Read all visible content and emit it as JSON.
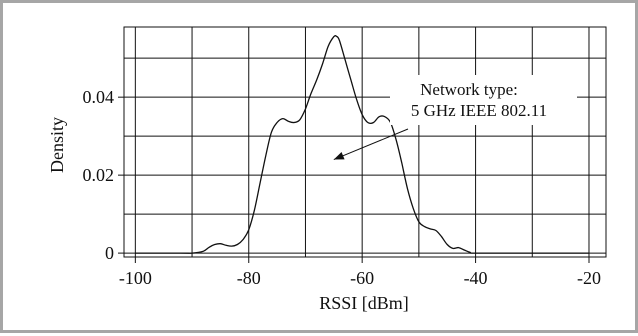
{
  "chart_data": {
    "type": "line",
    "xlabel": "RSSI [dBm]",
    "ylabel": "Density",
    "xlim": [
      -102,
      -17
    ],
    "ylim": [
      -0.001,
      0.058
    ],
    "x_ticks": [
      -100,
      -80,
      -60,
      -40,
      -20
    ],
    "x_tick_labels": [
      "-100",
      "-80",
      "-60",
      "-40",
      "-20"
    ],
    "x_grid": [
      -100,
      -90,
      -80,
      -70,
      -60,
      -50,
      -40,
      -30,
      -20
    ],
    "y_ticks": [
      0,
      0.02,
      0.04
    ],
    "y_tick_labels": [
      "0",
      "0.02",
      "0.04"
    ],
    "y_grid": [
      0,
      0.01,
      0.02,
      0.03,
      0.04,
      0.05
    ],
    "grid": true,
    "annotation": {
      "lines": [
        "Network type:",
        "5 GHz IEEE 802.11"
      ],
      "arrow_to": [
        -65,
        0.024
      ]
    },
    "series": [
      {
        "x": [
          -100,
          -92,
          -90,
          -88,
          -87,
          -86,
          -85,
          -84,
          -83,
          -82,
          -81,
          -80,
          -79,
          -78,
          -77,
          -76,
          -75,
          -74,
          -73,
          -72,
          -71,
          -70,
          -69,
          -68,
          -67,
          -66,
          -65,
          -64.5,
          -64,
          -63,
          -62,
          -61,
          -60,
          -59,
          -58,
          -57,
          -56,
          -55,
          -54,
          -53,
          -52,
          -51,
          -50,
          -49,
          -48,
          -47,
          -46,
          -45,
          -44,
          -43,
          -42,
          -41,
          -40,
          -30,
          -20
        ],
        "y": [
          0,
          0,
          0,
          0.0005,
          0.0015,
          0.0022,
          0.0024,
          0.002,
          0.0018,
          0.0022,
          0.0035,
          0.006,
          0.011,
          0.018,
          0.025,
          0.031,
          0.0335,
          0.0345,
          0.0338,
          0.0335,
          0.0342,
          0.037,
          0.041,
          0.0445,
          0.0485,
          0.053,
          0.0555,
          0.0556,
          0.0545,
          0.0495,
          0.0445,
          0.0395,
          0.0355,
          0.0335,
          0.0335,
          0.035,
          0.035,
          0.0335,
          0.029,
          0.023,
          0.0165,
          0.0115,
          0.008,
          0.0068,
          0.0062,
          0.0058,
          0.0042,
          0.0022,
          0.0012,
          0.0014,
          0.0008,
          0.0002,
          0,
          0,
          0
        ]
      }
    ]
  }
}
